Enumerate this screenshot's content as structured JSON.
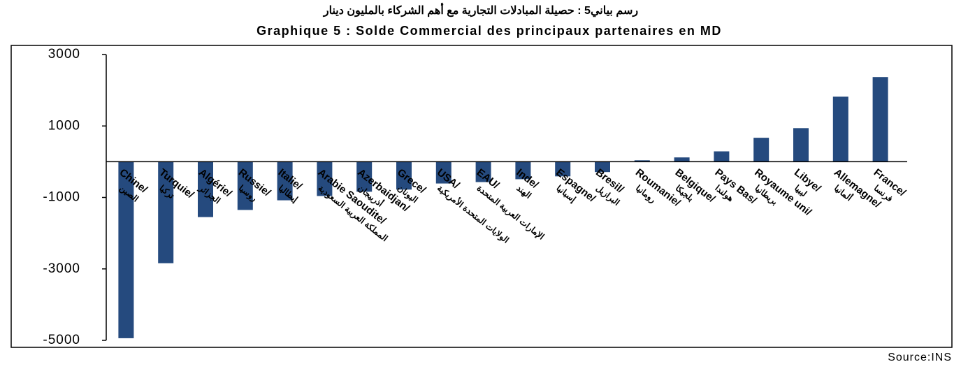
{
  "chart_data": {
    "type": "bar",
    "title_ar": "رسم بياني5 : حصيلة المبادلات التجارية مع أهم الشركاء بالمليون دينار",
    "title": "Graphique 5 : Solde Commercial des principaux partenaires en MD",
    "source": "Source:INS",
    "categories": [
      "Chine/",
      "Turquie/",
      "Algérie/",
      "Russie/",
      "Italie/",
      "Arabie Saoudite/",
      "Azerbaidjan/",
      "Grece/",
      "USA/",
      "EAU/",
      "Inde/",
      "Espagne/",
      "Bresil/",
      "Roumanie/",
      "Belgique/",
      "Pays Bas/",
      "Royaume uni/",
      "Libye/",
      "Allemagne/",
      "France/"
    ],
    "categories_ar": [
      "الصين",
      "تركيا",
      "الجزائر",
      "روسيا",
      "إيطاليا",
      "المملكة العربية السعودية",
      "أذربيجان",
      "اليونان",
      "الولايات المتحدة الأمريكية",
      "الإمارات العربية المتحدة",
      "الهند",
      "إسبانيا",
      "البرازيل",
      "رومانيا",
      "بلجيكا",
      "هولندا",
      "بريطانيا",
      "ليبيا",
      "ألمانيا",
      "فرنسا"
    ],
    "values": [
      -4940,
      -2840,
      -1550,
      -1350,
      -1080,
      -960,
      -840,
      -780,
      -610,
      -570,
      -490,
      -410,
      -290,
      40,
      120,
      290,
      670,
      940,
      1820,
      2370
    ],
    "color": "#254a7e",
    "ylim": [
      -5000,
      3000
    ],
    "yticks": [
      -5000,
      -3000,
      -1000,
      1000,
      3000
    ]
  }
}
